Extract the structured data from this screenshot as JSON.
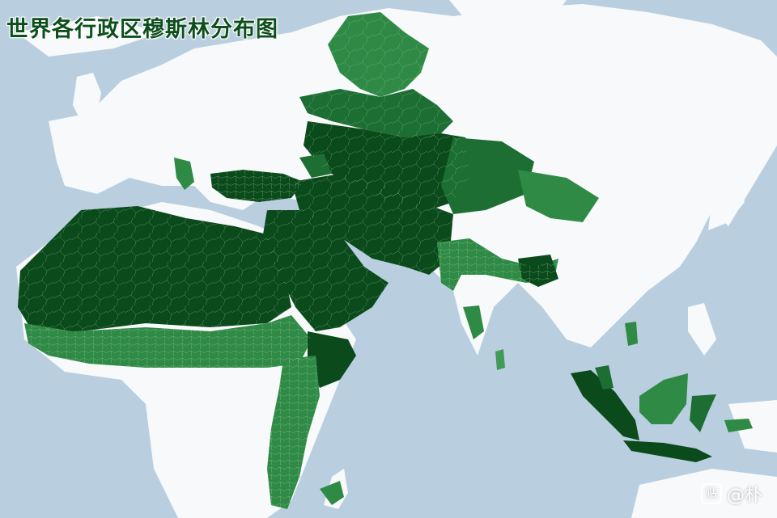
{
  "title": "世界各行政区穆斯林分布图",
  "watermark": {
    "icon": "tieba-icon",
    "icon_glyph": "贴",
    "text": "@朴"
  },
  "colors": {
    "ocean": "#b9cfe0",
    "land": "#f7f9fa",
    "majority": "#0b4a1b",
    "high": "#1c6e33",
    "medium": "#2f8a45",
    "lower": "#3f9b55",
    "border": "#8fc79c"
  }
}
